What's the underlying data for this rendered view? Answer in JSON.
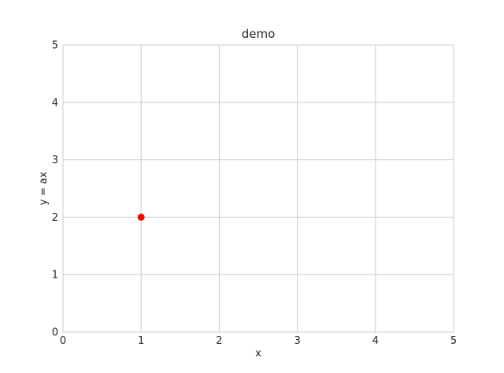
{
  "chart_data": {
    "type": "scatter",
    "title": "demo",
    "xlabel": "x",
    "ylabel": "y = ax",
    "xlim": [
      0,
      5
    ],
    "ylim": [
      0,
      5
    ],
    "xticks": [
      "0",
      "1",
      "2",
      "3",
      "4",
      "5"
    ],
    "yticks": [
      "0",
      "1",
      "2",
      "3",
      "4",
      "5"
    ],
    "grid": true,
    "series": [
      {
        "points": [
          {
            "x": 1,
            "y": 2
          }
        ],
        "color": "#ff0000",
        "marker": "circle"
      }
    ]
  }
}
